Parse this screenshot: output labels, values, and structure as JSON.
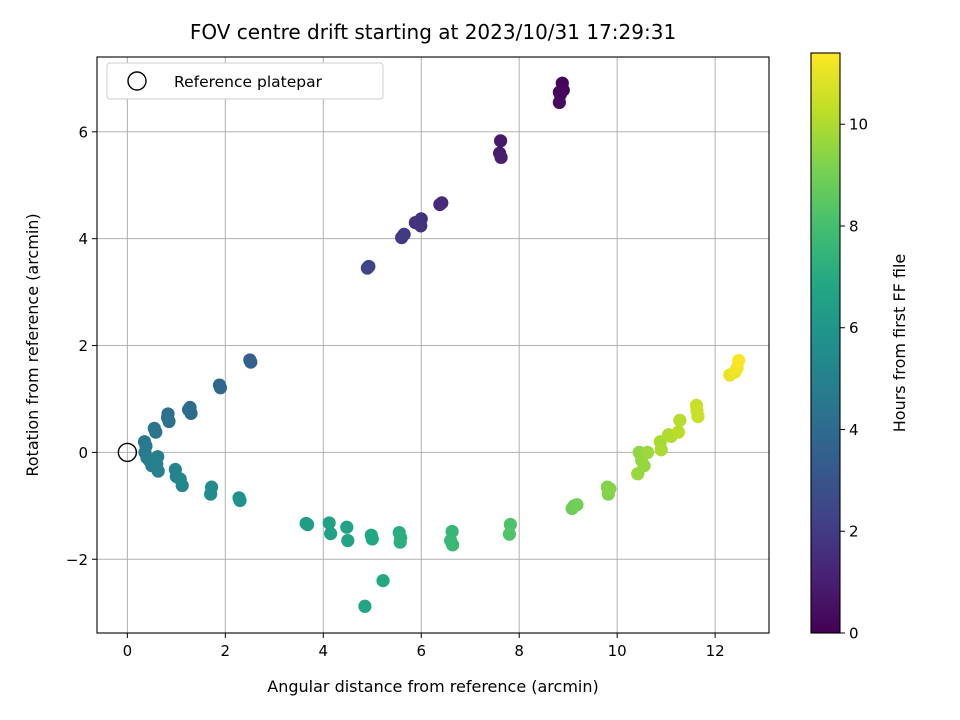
{
  "chart_data": {
    "type": "scatter",
    "title": "FOV centre drift starting at 2023/10/31 17:29:31",
    "xlabel": "Angular distance from reference (arcmin)",
    "ylabel": "Rotation from reference (arcmin)",
    "xlim": [
      -0.62,
      13.1
    ],
    "ylim": [
      -3.38,
      7.4
    ],
    "xticks": [
      0,
      2,
      4,
      6,
      8,
      10,
      12
    ],
    "yticks": [
      -2,
      0,
      2,
      4,
      6
    ],
    "grid": true,
    "legend": {
      "position": "upper-left",
      "entries": [
        "Reference platepar"
      ]
    },
    "reference_point": {
      "x": 0,
      "y": 0,
      "label": "Reference platepar"
    },
    "colorbar": {
      "label": "Hours from first FF file",
      "colormap": "viridis",
      "range": [
        0,
        11.4
      ],
      "ticks": [
        0,
        2,
        4,
        6,
        8,
        10
      ]
    },
    "points": [
      {
        "x": 8.88,
        "y": 6.91,
        "c": 0.1
      },
      {
        "x": 8.82,
        "y": 6.74,
        "c": 0.15
      },
      {
        "x": 8.9,
        "y": 6.78,
        "c": 0.2
      },
      {
        "x": 8.84,
        "y": 6.7,
        "c": 0.25
      },
      {
        "x": 8.82,
        "y": 6.55,
        "c": 0.3
      },
      {
        "x": 7.62,
        "y": 5.83,
        "c": 0.8
      },
      {
        "x": 7.6,
        "y": 5.6,
        "c": 0.9
      },
      {
        "x": 7.63,
        "y": 5.52,
        "c": 1.0
      },
      {
        "x": 6.42,
        "y": 4.67,
        "c": 1.4
      },
      {
        "x": 6.38,
        "y": 4.64,
        "c": 1.45
      },
      {
        "x": 6.0,
        "y": 4.37,
        "c": 1.6
      },
      {
        "x": 5.88,
        "y": 4.3,
        "c": 1.65
      },
      {
        "x": 5.95,
        "y": 4.32,
        "c": 1.7
      },
      {
        "x": 5.99,
        "y": 4.24,
        "c": 1.75
      },
      {
        "x": 5.65,
        "y": 4.08,
        "c": 1.9
      },
      {
        "x": 5.6,
        "y": 4.02,
        "c": 1.95
      },
      {
        "x": 4.93,
        "y": 3.48,
        "c": 2.3
      },
      {
        "x": 4.9,
        "y": 3.45,
        "c": 2.35
      },
      {
        "x": 2.5,
        "y": 1.73,
        "c": 3.5
      },
      {
        "x": 2.52,
        "y": 1.69,
        "c": 3.55
      },
      {
        "x": 1.88,
        "y": 1.26,
        "c": 3.8
      },
      {
        "x": 1.9,
        "y": 1.21,
        "c": 3.85
      },
      {
        "x": 1.28,
        "y": 0.84,
        "c": 4.0
      },
      {
        "x": 1.3,
        "y": 0.73,
        "c": 4.05
      },
      {
        "x": 1.25,
        "y": 0.8,
        "c": 4.1
      },
      {
        "x": 0.83,
        "y": 0.72,
        "c": 4.2
      },
      {
        "x": 0.85,
        "y": 0.58,
        "c": 4.25
      },
      {
        "x": 0.82,
        "y": 0.65,
        "c": 4.3
      },
      {
        "x": 0.55,
        "y": 0.45,
        "c": 4.4
      },
      {
        "x": 0.58,
        "y": 0.38,
        "c": 4.45
      },
      {
        "x": 0.35,
        "y": 0.2,
        "c": 4.55
      },
      {
        "x": 0.38,
        "y": 0.12,
        "c": 4.6
      },
      {
        "x": 0.36,
        "y": 0.0,
        "c": 4.7
      },
      {
        "x": 0.4,
        "y": -0.1,
        "c": 4.75
      },
      {
        "x": 0.45,
        "y": -0.15,
        "c": 4.8
      },
      {
        "x": 0.5,
        "y": -0.25,
        "c": 4.85
      },
      {
        "x": 0.62,
        "y": -0.08,
        "c": 4.9
      },
      {
        "x": 0.6,
        "y": -0.22,
        "c": 4.95
      },
      {
        "x": 0.63,
        "y": -0.35,
        "c": 5.0
      },
      {
        "x": 0.98,
        "y": -0.32,
        "c": 5.1
      },
      {
        "x": 1.0,
        "y": -0.45,
        "c": 5.15
      },
      {
        "x": 1.08,
        "y": -0.5,
        "c": 5.2
      },
      {
        "x": 1.12,
        "y": -0.62,
        "c": 5.25
      },
      {
        "x": 1.72,
        "y": -0.65,
        "c": 5.45
      },
      {
        "x": 1.7,
        "y": -0.78,
        "c": 5.5
      },
      {
        "x": 2.28,
        "y": -0.85,
        "c": 5.7
      },
      {
        "x": 2.3,
        "y": -0.9,
        "c": 5.75
      },
      {
        "x": 3.65,
        "y": -1.33,
        "c": 6.3
      },
      {
        "x": 3.68,
        "y": -1.35,
        "c": 6.35
      },
      {
        "x": 4.12,
        "y": -1.32,
        "c": 6.5
      },
      {
        "x": 4.15,
        "y": -1.52,
        "c": 6.55
      },
      {
        "x": 4.48,
        "y": -1.4,
        "c": 6.6
      },
      {
        "x": 4.5,
        "y": -1.65,
        "c": 6.65
      },
      {
        "x": 4.98,
        "y": -1.55,
        "c": 6.8
      },
      {
        "x": 5.0,
        "y": -1.62,
        "c": 6.85
      },
      {
        "x": 4.85,
        "y": -2.88,
        "c": 6.7
      },
      {
        "x": 5.22,
        "y": -2.4,
        "c": 6.9
      },
      {
        "x": 5.55,
        "y": -1.5,
        "c": 7.1
      },
      {
        "x": 5.58,
        "y": -1.6,
        "c": 7.15
      },
      {
        "x": 5.57,
        "y": -1.68,
        "c": 7.2
      },
      {
        "x": 6.63,
        "y": -1.48,
        "c": 7.6
      },
      {
        "x": 6.6,
        "y": -1.65,
        "c": 7.65
      },
      {
        "x": 6.64,
        "y": -1.73,
        "c": 7.7
      },
      {
        "x": 7.82,
        "y": -1.35,
        "c": 8.2
      },
      {
        "x": 7.8,
        "y": -1.53,
        "c": 8.25
      },
      {
        "x": 9.08,
        "y": -1.05,
        "c": 8.85
      },
      {
        "x": 9.12,
        "y": -1.0,
        "c": 8.9
      },
      {
        "x": 9.18,
        "y": -0.98,
        "c": 8.95
      },
      {
        "x": 9.8,
        "y": -0.65,
        "c": 9.2
      },
      {
        "x": 9.82,
        "y": -0.78,
        "c": 9.25
      },
      {
        "x": 9.85,
        "y": -0.68,
        "c": 9.3
      },
      {
        "x": 10.45,
        "y": 0.0,
        "c": 9.5
      },
      {
        "x": 10.5,
        "y": -0.15,
        "c": 9.55
      },
      {
        "x": 10.55,
        "y": -0.25,
        "c": 9.6
      },
      {
        "x": 10.42,
        "y": -0.4,
        "c": 9.65
      },
      {
        "x": 10.62,
        "y": 0.0,
        "c": 9.7
      },
      {
        "x": 10.88,
        "y": 0.2,
        "c": 9.9
      },
      {
        "x": 10.9,
        "y": 0.05,
        "c": 9.95
      },
      {
        "x": 11.05,
        "y": 0.33,
        "c": 10.0
      },
      {
        "x": 11.1,
        "y": 0.3,
        "c": 10.05
      },
      {
        "x": 11.28,
        "y": 0.6,
        "c": 10.15
      },
      {
        "x": 11.25,
        "y": 0.38,
        "c": 10.2
      },
      {
        "x": 11.62,
        "y": 0.88,
        "c": 10.4
      },
      {
        "x": 11.65,
        "y": 0.67,
        "c": 10.45
      },
      {
        "x": 11.63,
        "y": 0.78,
        "c": 10.5
      },
      {
        "x": 12.3,
        "y": 1.45,
        "c": 11.0
      },
      {
        "x": 12.4,
        "y": 1.5,
        "c": 11.1
      },
      {
        "x": 12.45,
        "y": 1.58,
        "c": 11.2
      },
      {
        "x": 12.48,
        "y": 1.72,
        "c": 11.3
      }
    ]
  }
}
